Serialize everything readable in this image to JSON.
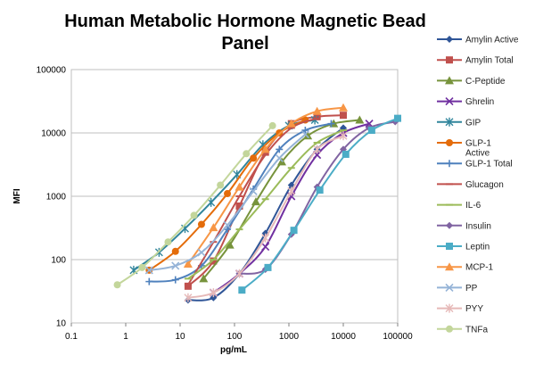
{
  "chart_data": {
    "type": "line",
    "title_lines": [
      "Human Metabolic Hormone Magnetic Bead",
      "Panel"
    ],
    "xlabel": "pg/mL",
    "ylabel": "MFI",
    "xscale": "log",
    "yscale": "log",
    "xlim": [
      0.1,
      100000
    ],
    "ylim": [
      10,
      100000
    ],
    "x_ticks": [
      0.1,
      1,
      10,
      100,
      1000,
      10000,
      100000
    ],
    "x_tick_labels": [
      "0.1",
      "1",
      "10",
      "100",
      "1000",
      "10000",
      "100000"
    ],
    "y_ticks": [
      10,
      100,
      1000,
      10000,
      100000
    ],
    "y_tick_labels": [
      "10",
      "100",
      "1000",
      "10000",
      "100000"
    ],
    "grid": "horizontal",
    "legend_position": "right",
    "series": [
      {
        "name": "Amylin Active",
        "color": "#2F5597",
        "marker": "diamond",
        "points": [
          [
            14,
            23
          ],
          [
            41,
            25
          ],
          [
            123,
            60
          ],
          [
            370,
            260
          ],
          [
            1110,
            1500
          ],
          [
            3300,
            5500
          ],
          [
            10000,
            12000
          ]
        ]
      },
      {
        "name": "Amylin Total",
        "color": "#C0504D",
        "marker": "square",
        "points": [
          [
            14,
            38
          ],
          [
            41,
            95
          ],
          [
            123,
            700
          ],
          [
            370,
            5000
          ],
          [
            1110,
            14000
          ],
          [
            3300,
            18000
          ],
          [
            10000,
            19000
          ]
        ]
      },
      {
        "name": "C-Peptide",
        "color": "#77933C",
        "marker": "triangle",
        "points": [
          [
            27,
            50
          ],
          [
            82,
            170
          ],
          [
            247,
            820
          ],
          [
            740,
            3500
          ],
          [
            2220,
            9000
          ],
          [
            6670,
            14000
          ],
          [
            20000,
            16000
          ]
        ]
      },
      {
        "name": "Ghrelin",
        "color": "#7030A0",
        "marker": "x",
        "points": [
          [
            41,
            30
          ],
          [
            123,
            60
          ],
          [
            370,
            160
          ],
          [
            1110,
            1000
          ],
          [
            3300,
            4500
          ],
          [
            10000,
            10000
          ],
          [
            30000,
            14000
          ]
        ]
      },
      {
        "name": "GIP",
        "color": "#31859C",
        "marker": "asterisk",
        "points": [
          [
            1.4,
            68
          ],
          [
            4.1,
            130
          ],
          [
            12.3,
            310
          ],
          [
            37,
            800
          ],
          [
            111,
            2200
          ],
          [
            333,
            6500
          ],
          [
            1000,
            13000
          ],
          [
            3000,
            16000
          ]
        ]
      },
      {
        "name": "GLP-1 Active",
        "color": "#E46C0A",
        "marker": "circle",
        "points": [
          [
            2.7,
            68
          ],
          [
            8.2,
            135
          ],
          [
            24.7,
            360
          ],
          [
            74,
            1100
          ],
          [
            222,
            4000
          ],
          [
            667,
            10000
          ],
          [
            2000,
            16000
          ]
        ]
      },
      {
        "name": "GLP-1  Total",
        "color": "#4F81BD",
        "marker": "plus",
        "points": [
          [
            2.7,
            45
          ],
          [
            8.2,
            48
          ],
          [
            24.7,
            80
          ],
          [
            74,
            300
          ],
          [
            222,
            1300
          ],
          [
            667,
            5500
          ],
          [
            2000,
            11000
          ],
          [
            6000,
            14000
          ]
        ]
      },
      {
        "name": "Glucagon",
        "color": "#C0504D",
        "marker": "dash",
        "points": [
          [
            14,
            40
          ],
          [
            41,
            190
          ],
          [
            123,
            1000
          ],
          [
            370,
            4500
          ],
          [
            1110,
            12000
          ],
          [
            3300,
            17000
          ]
        ]
      },
      {
        "name": "IL-6",
        "color": "#9BBB59",
        "marker": "dash",
        "points": [
          [
            14,
            50
          ],
          [
            41,
            100
          ],
          [
            123,
            300
          ],
          [
            370,
            900
          ],
          [
            1110,
            2800
          ],
          [
            3300,
            7000
          ],
          [
            10000,
            11000
          ]
        ]
      },
      {
        "name": "Insulin",
        "color": "#8064A2",
        "marker": "diamond",
        "points": [
          [
            123,
            60
          ],
          [
            370,
            70
          ],
          [
            1110,
            250
          ],
          [
            3300,
            1400
          ],
          [
            10000,
            5500
          ],
          [
            30000,
            12000
          ],
          [
            90000,
            15000
          ]
        ]
      },
      {
        "name": "Leptin",
        "color": "#4BACC6",
        "marker": "square",
        "points": [
          [
            137,
            33
          ],
          [
            412,
            75
          ],
          [
            1235,
            290
          ],
          [
            3700,
            1250
          ],
          [
            11100,
            4600
          ],
          [
            33300,
            11000
          ],
          [
            100000,
            17000
          ]
        ]
      },
      {
        "name": "MCP-1",
        "color": "#F79646",
        "marker": "triangle",
        "points": [
          [
            14,
            85
          ],
          [
            41,
            320
          ],
          [
            123,
            1400
          ],
          [
            370,
            5500
          ],
          [
            1110,
            14000
          ],
          [
            3300,
            22000
          ],
          [
            10000,
            25000
          ]
        ]
      },
      {
        "name": "PP",
        "color": "#95B3D7",
        "marker": "x",
        "points": [
          [
            2.7,
            68
          ],
          [
            8.2,
            80
          ],
          [
            24.7,
            130
          ],
          [
            74,
            350
          ],
          [
            222,
            1200
          ],
          [
            667,
            4000
          ],
          [
            2000,
            9500
          ]
        ]
      },
      {
        "name": "PYY",
        "color": "#E6B9B8",
        "marker": "asterisk",
        "points": [
          [
            14,
            25
          ],
          [
            41,
            30
          ],
          [
            123,
            60
          ],
          [
            370,
            220
          ],
          [
            1110,
            1200
          ],
          [
            3300,
            5500
          ],
          [
            10000,
            9000
          ]
        ]
      },
      {
        "name": "TNFa",
        "color": "#C3D69B",
        "marker": "circle",
        "points": [
          [
            0.7,
            40
          ],
          [
            2,
            75
          ],
          [
            6,
            190
          ],
          [
            18,
            500
          ],
          [
            55,
            1500
          ],
          [
            165,
            4700
          ],
          [
            500,
            13000
          ]
        ]
      }
    ]
  }
}
